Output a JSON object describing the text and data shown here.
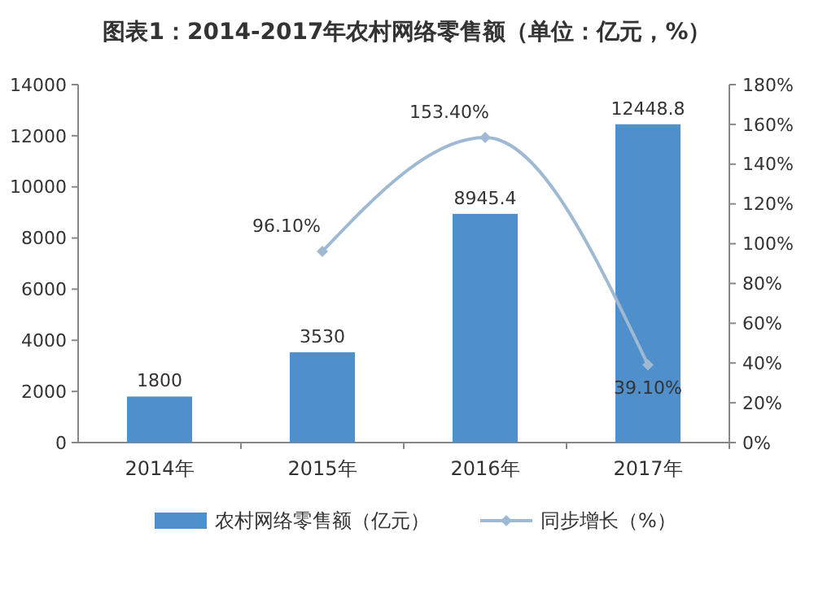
{
  "chart_data": {
    "type": "bar",
    "title": "图表1：2014-2017年农村网络零售额（单位：亿元，%）",
    "categories": [
      "2014年",
      "2015年",
      "2016年",
      "2017年"
    ],
    "series": [
      {
        "name": "农村网络零售额（亿元）",
        "color": "#4f8fcb",
        "values": [
          1800,
          3530,
          8945.4,
          12448.8
        ],
        "value_labels": [
          "1800",
          "3530",
          "8945.4",
          "12448.8"
        ]
      },
      {
        "name": "同步增长（%）",
        "type": "line",
        "axis": "y2",
        "color": "#9fb9d3",
        "values": [
          null,
          96.1,
          153.4,
          39.1
        ],
        "value_labels": [
          null,
          "96.10%",
          "153.40%",
          "39.10%"
        ]
      }
    ],
    "ylim": [
      0,
      14000
    ],
    "yticks": [
      0,
      2000,
      4000,
      6000,
      8000,
      10000,
      12000,
      14000
    ],
    "y2lim": [
      0,
      180
    ],
    "y2ticks": [
      {
        "value": 0,
        "label": "0%"
      },
      {
        "value": 20,
        "label": "20%"
      },
      {
        "value": 40,
        "label": "40%"
      },
      {
        "value": 60,
        "label": "60%"
      },
      {
        "value": 80,
        "label": "80%"
      },
      {
        "value": 100,
        "label": "100%"
      },
      {
        "value": 120,
        "label": "120%"
      },
      {
        "value": 140,
        "label": "140%"
      },
      {
        "value": 160,
        "label": "160%"
      },
      {
        "value": 180,
        "label": "180%"
      }
    ],
    "legend": "bottom",
    "marker": "diamond",
    "grid": false
  }
}
